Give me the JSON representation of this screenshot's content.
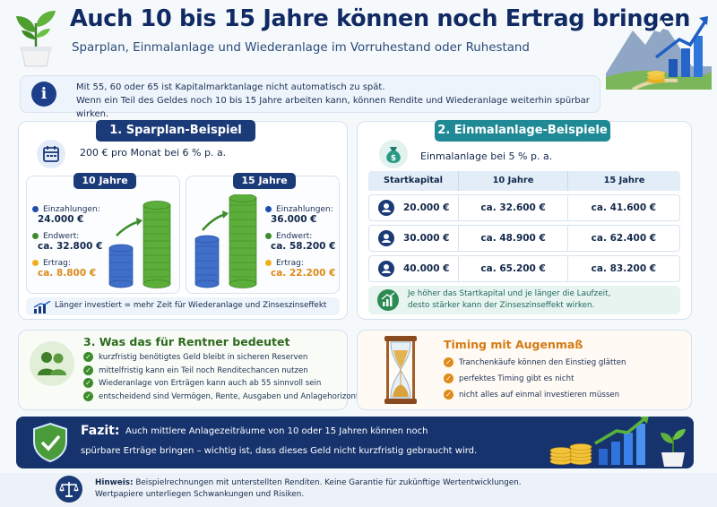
{
  "header": {
    "title": "Auch 10 bis 15 Jahre können noch Ertrag bringen",
    "subtitle": "Sparplan, Einmalanlage und Wiederanlage im Vorruhestand oder Ruhestand"
  },
  "info": {
    "line1": "Mit 55, 60 oder 65 ist Kapitalmarktanlage nicht automatisch zu spät.",
    "line2": "Wenn ein Teil des Geldes noch 10 bis 15 Jahre arbeiten kann, können Rendite und Wiederanlage weiterhin spürbar wirken."
  },
  "sparplan": {
    "heading": "1. Sparplan-Beispiel",
    "subline": "200 € pro Monat bei 6 % p. a.",
    "ten": {
      "label": "10 Jahre",
      "einzahlungen_label": "Einzahlungen:",
      "einzahlungen_value": "24.000 €",
      "endwert_label": "Endwert:",
      "endwert_value": "ca. 32.800 €",
      "ertrag_label": "Ertrag:",
      "ertrag_value": "ca. 8.800 €"
    },
    "fifteen": {
      "label": "15 Jahre",
      "einzahlungen_label": "Einzahlungen:",
      "einzahlungen_value": "36.000 €",
      "endwert_label": "Endwert:",
      "endwert_value": "ca. 58.200 €",
      "ertrag_label": "Ertrag:",
      "ertrag_value": "ca. 22.200 €"
    },
    "footer": "Länger investiert = mehr Zeit für Wiederanlage und Zinseszinseffekt"
  },
  "einmal": {
    "heading": "2. Einmalanlage-Beispiele",
    "subline": "Einmalanlage bei 5 % p. a.",
    "columns": [
      "Startkapital",
      "10 Jahre",
      "15 Jahre"
    ],
    "rows": [
      [
        "20.000 €",
        "ca. 32.600 €",
        "ca. 41.600 €"
      ],
      [
        "30.000 €",
        "ca. 48.900 €",
        "ca. 62.400 €"
      ],
      [
        "40.000 €",
        "ca. 65.200 €",
        "ca. 83.200 €"
      ]
    ],
    "note_line1": "Je höher das Startkapital und je länger die Laufzeit,",
    "note_line2": "desto stärker kann der Zinseszinseffekt wirken."
  },
  "rentner": {
    "heading": "3. Was das für Rentner bedeutet",
    "items": [
      "kurzfristig benötigtes Geld bleibt in sicheren Reserven",
      "mittelfristig kann ein Teil noch Renditechancen nutzen",
      "Wiederanlage von Erträgen kann auch ab 55 sinnvoll sein",
      "entscheidend sind Vermögen, Rente, Ausgaben und Anlagehorizont"
    ]
  },
  "timing": {
    "heading": "Timing mit Augenmaß",
    "items": [
      "Tranchenkäufe können den Einstieg glätten",
      "perfektes Timing gibt es nicht",
      "nicht alles auf einmal investieren müssen"
    ]
  },
  "fazit": {
    "label": "Fazit:",
    "line1": "Auch mittlere Anlagezeiträume von 10 oder 15 Jahren können noch",
    "line2": "spürbare Erträge bringen – wichtig ist, dass dieses Geld nicht kurzfristig gebraucht wird."
  },
  "hinweis": {
    "label": "Hinweis:",
    "line1": "Beispielrechnungen mit unterstellten Renditen. Keine Garantie für zukünftige Wertentwicklungen.",
    "line2": "Wertpapiere unterliegen Schwankungen und Risiken."
  },
  "colors": {
    "navy": "#1b3a78",
    "teal": "#1f8a95",
    "green": "#3c8c2a",
    "orange": "#e08a1a"
  },
  "icons": [
    "plant-pot-icon",
    "mountain-growth-icon",
    "info-icon",
    "calendar-icon",
    "money-bag-icon",
    "user-icon",
    "chart-up-icon",
    "people-icon",
    "check-icon",
    "hourglass-icon",
    "shield-check-icon",
    "scales-icon"
  ]
}
